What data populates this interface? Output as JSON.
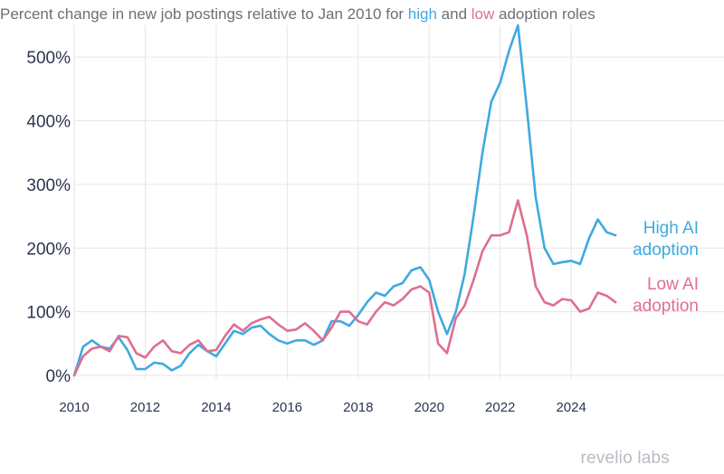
{
  "title": {
    "prefix": "Percent change in new job postings relative to Jan 2010 for ",
    "high_word": "high",
    "middle": " and ",
    "low_word": "low",
    "suffix": " adoption roles"
  },
  "brand": "revelio labs",
  "colors": {
    "high": "#3fa9e0",
    "low": "#de6f8e",
    "grid": "#e6e6e6",
    "axis": "#2a3550"
  },
  "chart_data": {
    "type": "line",
    "title": "Percent change in new job postings relative to Jan 2010 for high and low adoption roles",
    "xlabel": "",
    "ylabel": "",
    "xlim": [
      2010,
      2025.5
    ],
    "ylim": [
      0,
      550
    ],
    "y_ticks": [
      0,
      100,
      200,
      300,
      400,
      500
    ],
    "y_tick_labels": [
      "0%",
      "100%",
      "200%",
      "300%",
      "400%",
      "500%"
    ],
    "x_ticks": [
      2010,
      2012,
      2014,
      2016,
      2018,
      2020,
      2022,
      2024
    ],
    "x_tick_labels": [
      "2010",
      "2012",
      "2014",
      "2016",
      "2018",
      "2020",
      "2022",
      "2024"
    ],
    "grid": true,
    "legend": "direct labels at right end of lines",
    "series": [
      {
        "name": "High AI adoption",
        "label_lines": [
          "High AI",
          "adoption"
        ],
        "color": "#3fa9e0",
        "x": [
          2010.0,
          2010.25,
          2010.5,
          2010.75,
          2011.0,
          2011.25,
          2011.5,
          2011.75,
          2012.0,
          2012.25,
          2012.5,
          2012.75,
          2013.0,
          2013.25,
          2013.5,
          2013.75,
          2014.0,
          2014.25,
          2014.5,
          2014.75,
          2015.0,
          2015.25,
          2015.5,
          2015.75,
          2016.0,
          2016.25,
          2016.5,
          2016.75,
          2017.0,
          2017.25,
          2017.5,
          2017.75,
          2018.0,
          2018.25,
          2018.5,
          2018.75,
          2019.0,
          2019.25,
          2019.5,
          2019.75,
          2020.0,
          2020.25,
          2020.5,
          2020.75,
          2021.0,
          2021.25,
          2021.5,
          2021.75,
          2022.0,
          2022.25,
          2022.5,
          2022.75,
          2023.0,
          2023.25,
          2023.5,
          2023.75,
          2024.0,
          2024.25,
          2024.5,
          2024.75,
          2025.0,
          2025.25
        ],
        "y": [
          0,
          45,
          55,
          45,
          42,
          60,
          40,
          10,
          10,
          20,
          18,
          8,
          15,
          35,
          48,
          38,
          30,
          50,
          70,
          65,
          75,
          78,
          65,
          55,
          50,
          55,
          55,
          48,
          55,
          85,
          85,
          78,
          95,
          115,
          130,
          125,
          140,
          145,
          165,
          170,
          150,
          100,
          65,
          100,
          160,
          250,
          350,
          430,
          460,
          510,
          550,
          420,
          280,
          200,
          175,
          178,
          180,
          175,
          215,
          245,
          225,
          220
        ]
      },
      {
        "name": "Low AI adoption",
        "label_lines": [
          "Low AI",
          "adoption"
        ],
        "color": "#de6f8e",
        "x": [
          2010.0,
          2010.25,
          2010.5,
          2010.75,
          2011.0,
          2011.25,
          2011.5,
          2011.75,
          2012.0,
          2012.25,
          2012.5,
          2012.75,
          2013.0,
          2013.25,
          2013.5,
          2013.75,
          2014.0,
          2014.25,
          2014.5,
          2014.75,
          2015.0,
          2015.25,
          2015.5,
          2015.75,
          2016.0,
          2016.25,
          2016.5,
          2016.75,
          2017.0,
          2017.25,
          2017.5,
          2017.75,
          2018.0,
          2018.25,
          2018.5,
          2018.75,
          2019.0,
          2019.25,
          2019.5,
          2019.75,
          2020.0,
          2020.25,
          2020.5,
          2020.75,
          2021.0,
          2021.25,
          2021.5,
          2021.75,
          2022.0,
          2022.25,
          2022.5,
          2022.75,
          2023.0,
          2023.25,
          2023.5,
          2023.75,
          2024.0,
          2024.25,
          2024.5,
          2024.75,
          2025.0,
          2025.25
        ],
        "y": [
          0,
          30,
          42,
          45,
          38,
          62,
          60,
          35,
          28,
          45,
          55,
          38,
          35,
          48,
          55,
          38,
          40,
          62,
          80,
          70,
          82,
          88,
          92,
          80,
          70,
          72,
          82,
          70,
          55,
          75,
          100,
          100,
          85,
          80,
          100,
          115,
          110,
          120,
          135,
          140,
          130,
          50,
          35,
          90,
          110,
          150,
          195,
          220,
          220,
          225,
          275,
          220,
          140,
          115,
          110,
          120,
          118,
          100,
          105,
          130,
          125,
          115
        ]
      }
    ]
  }
}
